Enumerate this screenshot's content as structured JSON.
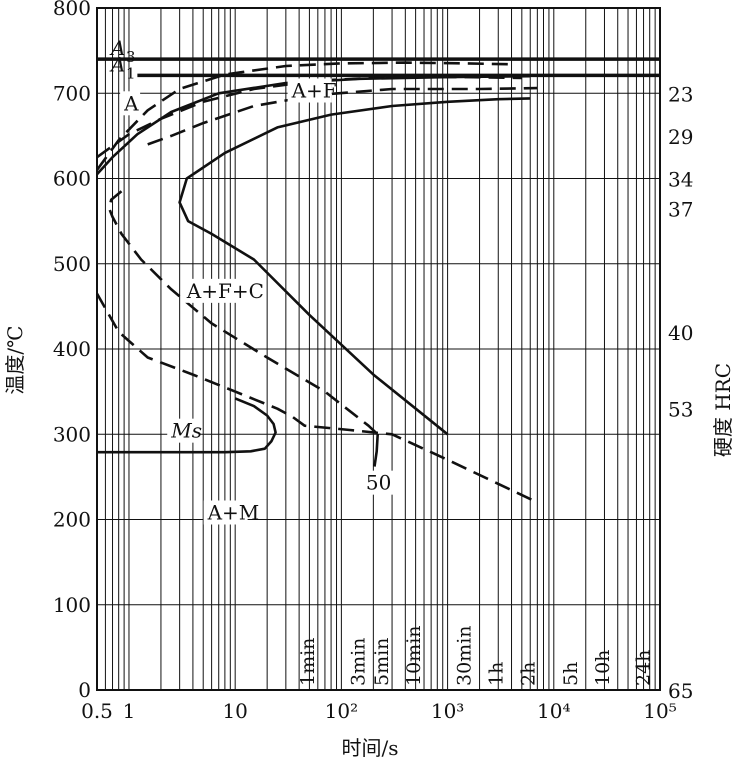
{
  "chart_data": {
    "type": "line",
    "title": "",
    "xlabel": "时间/s",
    "ylabel": "温度/℃",
    "y2label": "硬度 HRC",
    "x_scale": "log",
    "xlim": [
      0.5,
      100000
    ],
    "ylim": [
      0,
      800
    ],
    "x_tick_values": [
      0.5,
      1,
      10,
      100,
      1000,
      10000,
      100000
    ],
    "x_tick_labels": [
      "0.5",
      "1",
      "10",
      "10²",
      "10³",
      "10⁴",
      "10⁵"
    ],
    "y_tick_values": [
      0,
      100,
      200,
      300,
      400,
      500,
      600,
      700,
      800
    ],
    "y_tick_labels": [
      "0",
      "100",
      "200",
      "300",
      "400",
      "500",
      "600",
      "700",
      "800"
    ],
    "grid": true,
    "time_markers": [
      {
        "label": "1min",
        "t": 60
      },
      {
        "label": "3min",
        "t": 180
      },
      {
        "label": "5min",
        "t": 300
      },
      {
        "label": "10min",
        "t": 600
      },
      {
        "label": "30min",
        "t": 1800
      },
      {
        "label": "1h",
        "t": 3600
      },
      {
        "label": "2h",
        "t": 7200
      },
      {
        "label": "5h",
        "t": 18000
      },
      {
        "label": "10h",
        "t": 36000
      },
      {
        "label": "24h",
        "t": 86400
      }
    ],
    "hardness_scale": [
      {
        "label": "23",
        "temp": 700
      },
      {
        "label": "29",
        "temp": 650
      },
      {
        "label": "34",
        "temp": 600
      },
      {
        "label": "37",
        "temp": 565
      },
      {
        "label": "40",
        "temp": 420
      },
      {
        "label": "53",
        "temp": 330
      },
      {
        "label": "65",
        "temp": 0
      }
    ],
    "reference_lines": [
      {
        "name": "A3",
        "sub": "3",
        "base": "A",
        "y": 740,
        "x_start": 0.5
      },
      {
        "name": "A1",
        "sub": "1",
        "base": "A",
        "y": 721,
        "x_start": 1.2
      }
    ],
    "region_labels": [
      {
        "text": "A",
        "t": 0.9,
        "temp": 680
      },
      {
        "text": "A+F",
        "t": 34,
        "temp": 695
      },
      {
        "text": "A+F+C",
        "t": 3.5,
        "temp": 460
      },
      {
        "text": "A+M",
        "t": 5.5,
        "temp": 200
      },
      {
        "text": "Ms",
        "t": 2.5,
        "temp": 296
      },
      {
        "text": "50",
        "t": 170,
        "temp": 235
      }
    ],
    "series": [
      {
        "style": "dashed",
        "x": [
          0.5,
          0.8,
          1.5,
          3,
          8,
          30,
          100,
          400,
          1500,
          4000
        ],
        "y": [
          610,
          645,
          680,
          705,
          722,
          732,
          735,
          736,
          735,
          734
        ]
      },
      {
        "style": "dashed",
        "x": [
          0.5,
          1,
          2,
          5,
          15,
          60,
          300,
          1500,
          5000
        ],
        "y": [
          625,
          652,
          670,
          690,
          705,
          715,
          719,
          719,
          718
        ]
      },
      {
        "style": "dashed",
        "x": [
          1.5,
          2.5,
          5,
          15,
          60,
          300,
          2000,
          7000
        ],
        "y": [
          640,
          650,
          665,
          685,
          698,
          705,
          705,
          706
        ]
      },
      {
        "style": "solid",
        "x": [
          0.5,
          0.7,
          1.2,
          2.5,
          7,
          30,
          150,
          1000,
          6000
        ],
        "y": [
          605,
          625,
          652,
          678,
          700,
          712,
          717,
          719,
          720
        ]
      },
      {
        "style": "solid",
        "x": [
          6000,
          3000,
          1000,
          300,
          80,
          25,
          8,
          3.5,
          3.0,
          3.6,
          6,
          15,
          50,
          200,
          1000
        ],
        "y": [
          694,
          693,
          690,
          685,
          675,
          660,
          630,
          600,
          572,
          550,
          535,
          505,
          440,
          370,
          300
        ]
      },
      {
        "style": "dashed",
        "x": [
          0.5,
          0.8,
          1.5,
          4,
          10,
          25,
          35,
          45,
          120,
          300,
          1000,
          7000
        ],
        "y": [
          465,
          420,
          390,
          370,
          350,
          330,
          320,
          310,
          305,
          300,
          270,
          220
        ]
      },
      {
        "style": "dashed",
        "x": [
          0.85,
          0.68,
          0.65,
          0.7,
          0.85,
          1.3,
          2.5,
          6,
          20,
          70,
          180,
          220
        ],
        "y": [
          585,
          575,
          565,
          555,
          535,
          505,
          470,
          430,
          390,
          350,
          310,
          300
        ]
      },
      {
        "style": "solid",
        "x": [
          220,
          215,
          205
        ],
        "y": [
          300,
          280,
          262
        ]
      },
      {
        "style": "solid",
        "x": [
          0.5,
          3,
          8,
          14,
          19,
          22,
          24,
          23,
          20,
          15,
          10
        ],
        "y": [
          279,
          279,
          279,
          280,
          283,
          292,
          302,
          312,
          322,
          333,
          342
        ]
      }
    ]
  }
}
